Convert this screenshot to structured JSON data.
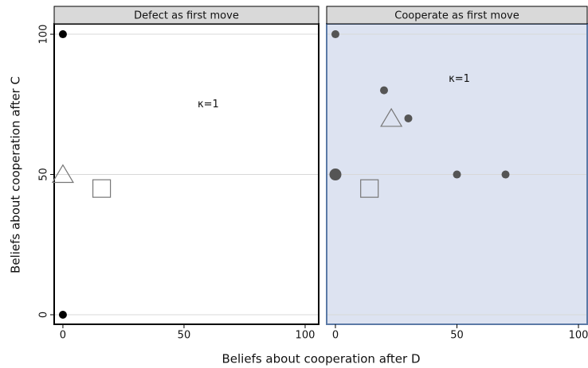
{
  "xlabel": "Beliefs about cooperation after D",
  "ylabel": "Beliefs about cooperation after C",
  "chart_data": [
    {
      "type": "scatter",
      "title": "Defect as first move",
      "background": "#ffffff",
      "border": "#000000",
      "xlim": [
        -3.6,
        105.6
      ],
      "ylim": [
        -3.4,
        103.7
      ],
      "xticks": [
        0,
        50,
        100
      ],
      "yticks": [
        0,
        50,
        100
      ],
      "ytick_labels": true,
      "grid": true,
      "annotation": {
        "text": "κ=1",
        "x": 60,
        "y": 75
      },
      "series": [
        {
          "marker": "circle",
          "color": "#000000",
          "x": [
            0,
            0
          ],
          "values": [
            100,
            0
          ],
          "sizes": [
            1,
            1
          ]
        },
        {
          "marker": "triangle",
          "color": "#777777",
          "x": [
            0
          ],
          "values": [
            50
          ]
        },
        {
          "marker": "square",
          "color": "#777777",
          "x": [
            16
          ],
          "values": [
            45
          ]
        }
      ]
    },
    {
      "type": "scatter",
      "title": "Cooperate as first move",
      "background": "#dde3f1",
      "border": "#5b7aa6",
      "xlim": [
        -3.6,
        103.6
      ],
      "ylim": [
        -3.4,
        103.7
      ],
      "xticks": [
        0,
        50,
        100
      ],
      "yticks": [
        0,
        50,
        100
      ],
      "ytick_labels": false,
      "grid": true,
      "annotation": {
        "text": "κ=1",
        "x": 51,
        "y": 84
      },
      "series": [
        {
          "marker": "circle",
          "color": "#555555",
          "x": [
            0,
            20,
            30,
            0,
            50,
            70
          ],
          "values": [
            100,
            80,
            70,
            50,
            50,
            50
          ],
          "sizes": [
            1,
            1,
            1,
            1.5,
            1,
            1
          ]
        },
        {
          "marker": "triangle",
          "color": "#777777",
          "x": [
            23
          ],
          "values": [
            70
          ]
        },
        {
          "marker": "square",
          "color": "#777777",
          "x": [
            14
          ],
          "values": [
            45
          ]
        }
      ]
    }
  ]
}
